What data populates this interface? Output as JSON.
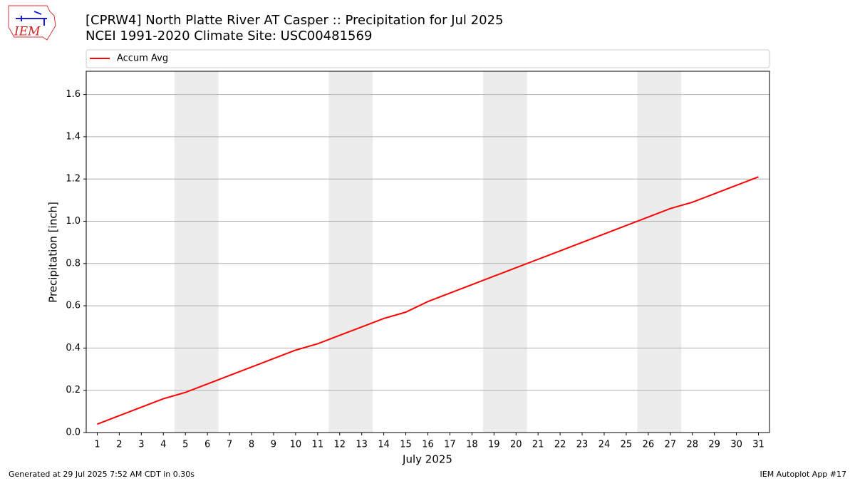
{
  "logo_text": "IEM",
  "chart_data": {
    "type": "line",
    "title": "[CPRW4] North Platte River  AT Casper :: Precipitation for Jul 2025",
    "subtitle": "NCEI 1991-2020 Climate Site: USC00481569",
    "x_label": "July 2025",
    "y_label": "Precipitation [inch]",
    "x": [
      1,
      2,
      3,
      4,
      5,
      6,
      7,
      8,
      9,
      10,
      11,
      12,
      13,
      14,
      15,
      16,
      17,
      18,
      19,
      20,
      21,
      22,
      23,
      24,
      25,
      26,
      27,
      28,
      29,
      30,
      31
    ],
    "series": [
      {
        "name": "Accum Avg",
        "color": "#ff0000",
        "values": [
          0.04,
          0.08,
          0.12,
          0.16,
          0.19,
          0.23,
          0.27,
          0.31,
          0.35,
          0.39,
          0.42,
          0.46,
          0.5,
          0.54,
          0.57,
          0.62,
          0.66,
          0.7,
          0.74,
          0.78,
          0.82,
          0.86,
          0.9,
          0.94,
          0.98,
          1.02,
          1.06,
          1.09,
          1.13,
          1.17,
          1.21
        ]
      }
    ],
    "xlim": [
      0.5,
      31.5
    ],
    "xticks": [
      1,
      2,
      3,
      4,
      5,
      6,
      7,
      8,
      9,
      10,
      11,
      12,
      13,
      14,
      15,
      16,
      17,
      18,
      19,
      20,
      21,
      22,
      23,
      24,
      25,
      26,
      27,
      28,
      29,
      30,
      31
    ],
    "ylim": [
      0,
      1.71
    ],
    "yticks": [
      {
        "value": 0,
        "label": "0.0"
      },
      {
        "value": 0.2,
        "label": "0.2"
      },
      {
        "value": 0.4,
        "label": "0.4"
      },
      {
        "value": 0.6,
        "label": "0.6"
      },
      {
        "value": 0.8,
        "label": "0.8"
      },
      {
        "value": 1,
        "label": "1.0"
      },
      {
        "value": 1.2,
        "label": "1.2"
      },
      {
        "value": 1.4,
        "label": "1.4"
      },
      {
        "value": 1.6,
        "label": "1.6"
      }
    ],
    "shaded_spans": [
      [
        4.5,
        6.5
      ],
      [
        11.5,
        13.5
      ],
      [
        18.5,
        20.5
      ],
      [
        25.5,
        27.5
      ]
    ],
    "shade_color": "#ececec",
    "grid": true,
    "legend": "top",
    "footer_left": "Generated at 29 Jul 2025 7:52 AM CDT in 0.30s",
    "footer_right": "IEM Autoplot App #17"
  }
}
